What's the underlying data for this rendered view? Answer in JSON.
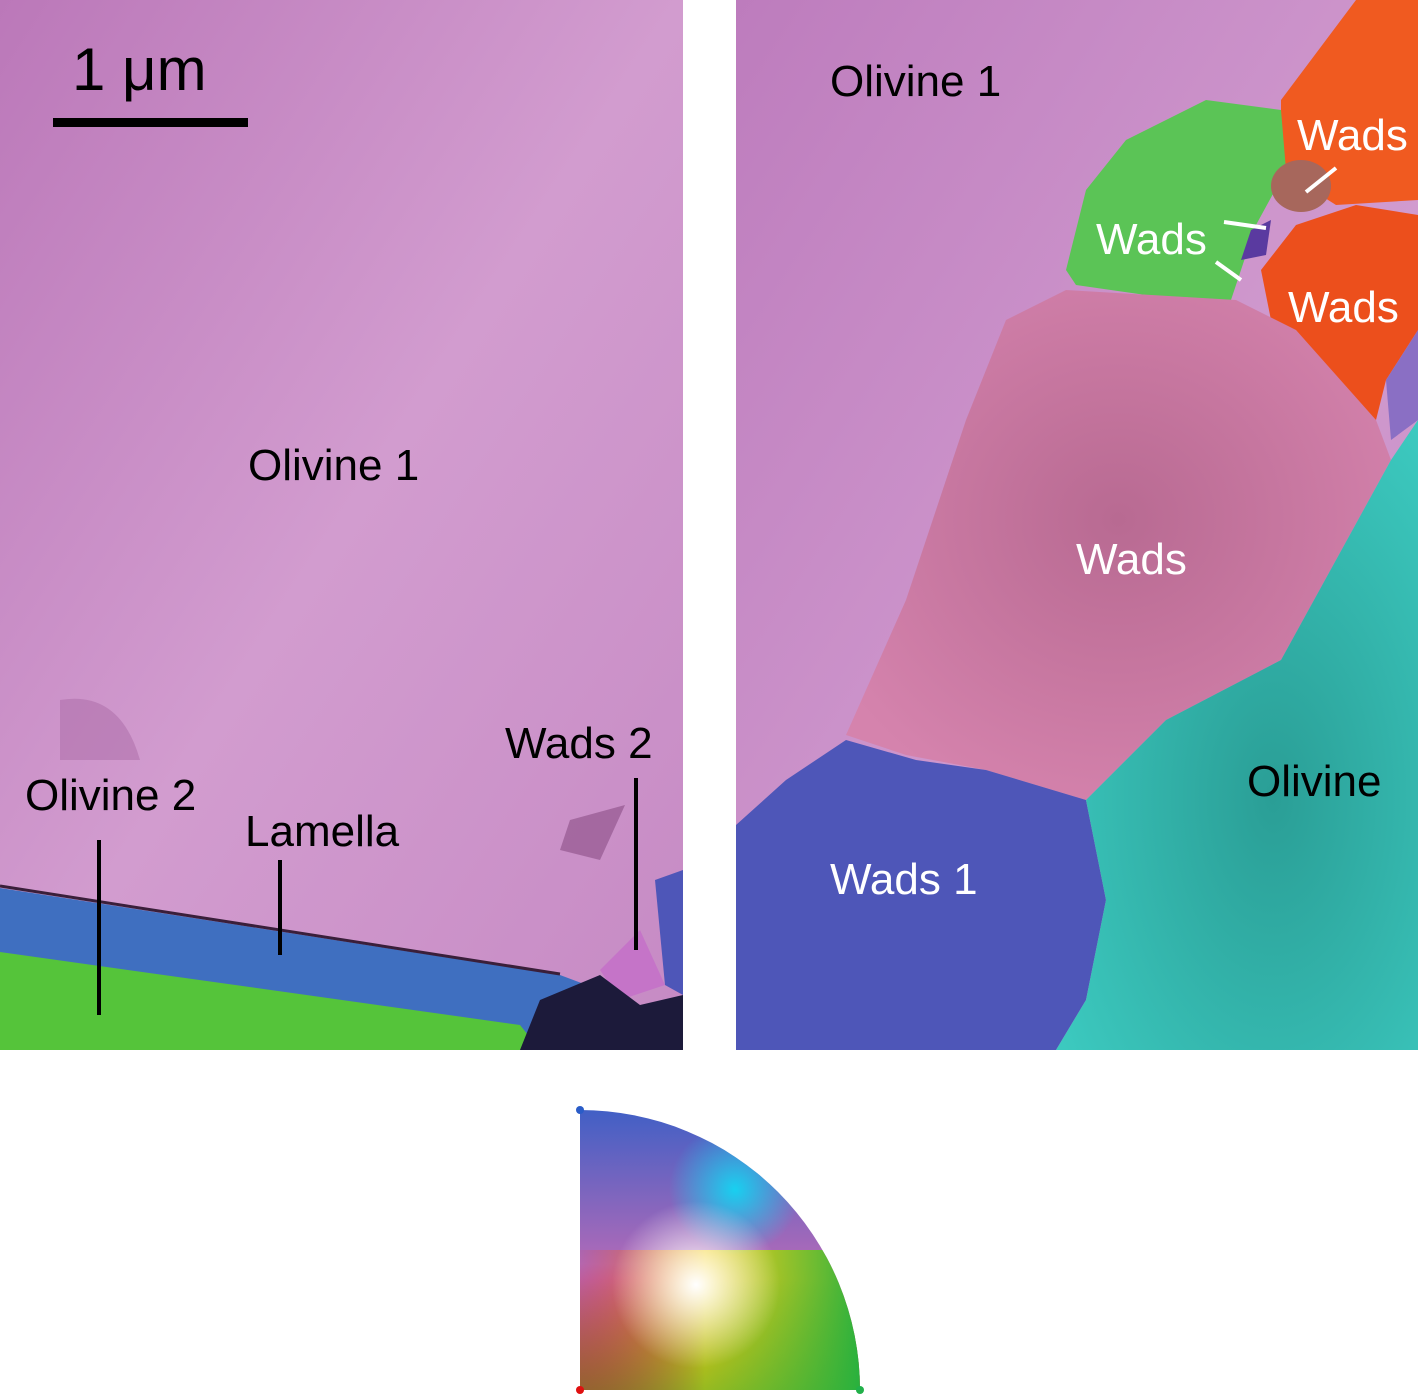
{
  "colors": {
    "olivine_1": "#c98ac6",
    "lamella": "#3f6fc0",
    "olivine_2": "#55c43a",
    "wads_pink": "#cf7aa5",
    "wads_blue": "#4e56b8",
    "wads_orange": "#f05a20",
    "wads_green": "#5bc456",
    "wads_brown": "#a7675c",
    "olivine_teal": "#35c2b8",
    "label_dark": "#000000",
    "label_light": "#ffffff"
  },
  "left_panel": {
    "scale_bar": {
      "label": "1 μm"
    },
    "labels": {
      "olivine_1": "Olivine 1",
      "olivine_2": "Olivine 2",
      "lamella": "Lamella",
      "wads_2": "Wads 2"
    }
  },
  "right_panel": {
    "labels": {
      "olivine_1": "Olivine 1",
      "wads_top_right": "Wads",
      "wads_small": "Wads",
      "wads_orange": "Wads",
      "wads_center": "Wads",
      "olivine": "Olivine",
      "wads_1": "Wads 1"
    }
  },
  "color_key": {
    "type": "inverse pole figure quarter disk",
    "corner_colors": [
      "#ff0000",
      "#2a5cc8",
      "#22b04a"
    ]
  }
}
